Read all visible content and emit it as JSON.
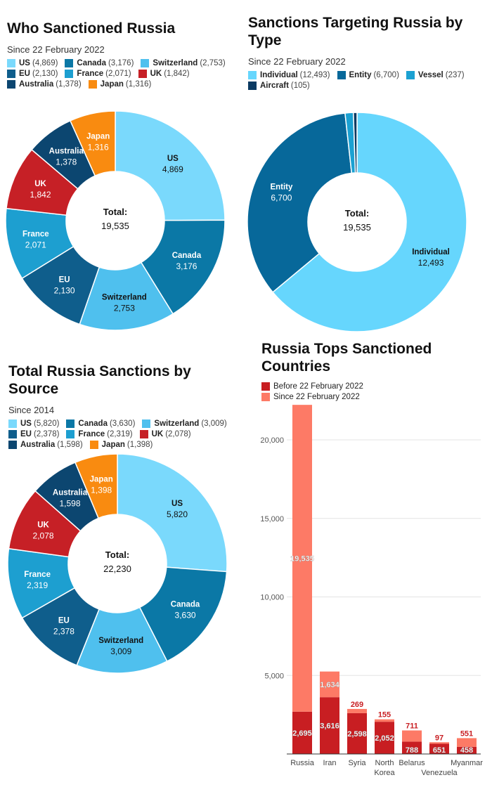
{
  "chart_data": [
    {
      "type": "pie",
      "id": "who",
      "title": "Who Sanctioned Russia",
      "subtitle": "Since 22 February 2022",
      "total_label": "Total:",
      "total": "19,535",
      "slices": [
        {
          "name": "US",
          "value": 4869,
          "label": "4,869",
          "color": "#7ad9fc",
          "dark": true
        },
        {
          "name": "Canada",
          "value": 3176,
          "label": "3,176",
          "color": "#0b78a6"
        },
        {
          "name": "Switzerland",
          "value": 2753,
          "label": "2,753",
          "color": "#4fc0ee",
          "dark": true
        },
        {
          "name": "EU",
          "value": 2130,
          "label": "2,130",
          "color": "#0f5e8c"
        },
        {
          "name": "France",
          "value": 2071,
          "label": "2,071",
          "color": "#1d9fd0"
        },
        {
          "name": "UK",
          "value": 1842,
          "label": "1,842",
          "color": "#c62026"
        },
        {
          "name": "Australia",
          "value": 1378,
          "label": "1,378",
          "color": "#0c4670"
        },
        {
          "name": "Japan",
          "value": 1316,
          "label": "1,316",
          "color": "#f98b10"
        }
      ]
    },
    {
      "type": "pie",
      "id": "type",
      "title": "Sanctions Targeting Russia by Type",
      "subtitle": "Since 22 February 2022",
      "total_label": "Total:",
      "total": "19,535",
      "slices": [
        {
          "name": "Individual",
          "value": 12493,
          "label": "12,493",
          "color": "#66d6fd",
          "dark": true
        },
        {
          "name": "Entity",
          "value": 6700,
          "label": "6,700",
          "color": "#07689a"
        },
        {
          "name": "Vessel",
          "value": 237,
          "label": "237",
          "color": "#1ba1d2",
          "nolabel": true
        },
        {
          "name": "Aircraft",
          "value": 105,
          "label": "105",
          "color": "#0b3a62",
          "nolabel": true
        }
      ]
    },
    {
      "type": "pie",
      "id": "src",
      "title": "Total Russia Sanctions by Source",
      "subtitle": "Since 2014",
      "total_label": "Total:",
      "total": "22,230",
      "slices": [
        {
          "name": "US",
          "value": 5820,
          "label": "5,820",
          "color": "#7ad9fc",
          "dark": true
        },
        {
          "name": "Canada",
          "value": 3630,
          "label": "3,630",
          "color": "#0b78a6"
        },
        {
          "name": "Switzerland",
          "value": 3009,
          "label": "3,009",
          "color": "#4fc0ee",
          "dark": true
        },
        {
          "name": "EU",
          "value": 2378,
          "label": "2,378",
          "color": "#0f5e8c"
        },
        {
          "name": "France",
          "value": 2319,
          "label": "2,319",
          "color": "#1d9fd0"
        },
        {
          "name": "UK",
          "value": 2078,
          "label": "2,078",
          "color": "#c62026"
        },
        {
          "name": "Australia",
          "value": 1598,
          "label": "1,598",
          "color": "#0c4670"
        },
        {
          "name": "Japan",
          "value": 1398,
          "label": "1,398",
          "color": "#f98b10"
        }
      ]
    },
    {
      "type": "bar",
      "id": "tops",
      "stacked": true,
      "title": "Russia Tops Sanctioned Countries",
      "categories": [
        "Russia",
        "Iran",
        "Syria",
        "North Korea",
        "Belarus",
        "Venezuela",
        "Myanmar"
      ],
      "series": [
        {
          "name": "Before 22 February 2022",
          "color": "#c81e22",
          "values": [
            2695,
            3616,
            2598,
            2052,
            788,
            651,
            458
          ],
          "labels": [
            "2,695",
            "3,616",
            "2,598",
            "2,052",
            "788",
            "651",
            "458"
          ]
        },
        {
          "name": "Since 22 February 2022",
          "color": "#fd7a66",
          "values": [
            19535,
            1634,
            269,
            155,
            711,
            97,
            551
          ],
          "labels": [
            "19,535",
            "1,634",
            "269",
            "155",
            "711",
            "97",
            "551"
          ]
        }
      ],
      "ylim": [
        0,
        22500
      ],
      "yticks": [
        5000,
        10000,
        15000,
        20000
      ],
      "ytick_labels": [
        "5,000",
        "10,000",
        "15,000",
        "20,000"
      ],
      "grid": true,
      "legend": "top-left"
    }
  ]
}
